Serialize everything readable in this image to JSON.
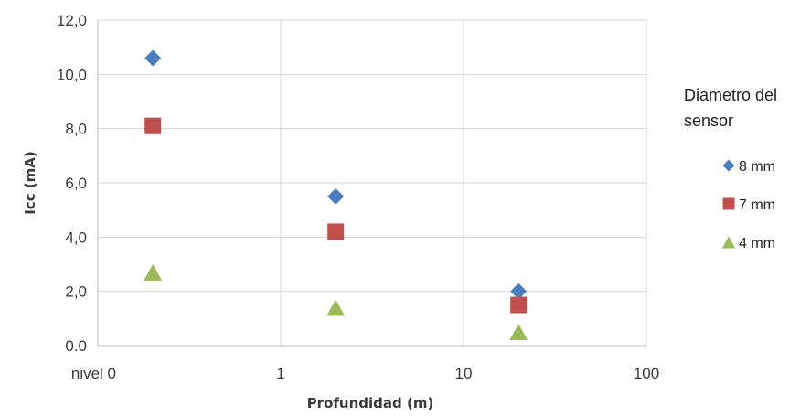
{
  "chart_data": {
    "type": "scatter",
    "xlabel": "Profundidad (m)",
    "ylabel": "Icc (mA)",
    "x_scale": "log",
    "xlim": [
      0.1,
      100
    ],
    "ylim": [
      0,
      12
    ],
    "x_ticks": [
      {
        "value": 0.1,
        "label": "nivel 0"
      },
      {
        "value": 1,
        "label": "1"
      },
      {
        "value": 10,
        "label": "10"
      },
      {
        "value": 100,
        "label": "100"
      }
    ],
    "y_ticks": [
      {
        "value": 0,
        "label": "0.0"
      },
      {
        "value": 2,
        "label": "2,0"
      },
      {
        "value": 4,
        "label": "4,0"
      },
      {
        "value": 6,
        "label": "6,0"
      },
      {
        "value": 8,
        "label": "8,0"
      },
      {
        "value": 10,
        "label": "10,0"
      },
      {
        "value": 12,
        "label": "12,0"
      }
    ],
    "grid": true,
    "legend_title": "Diametro del sensor",
    "legend_title_lines": [
      "Diametro del",
      "sensor"
    ],
    "legend_position": "right",
    "series": [
      {
        "name": "8 mm",
        "marker": "diamond",
        "color": "#4a7ebf",
        "x": [
          0.2,
          2,
          20
        ],
        "y": [
          10.6,
          5.5,
          2.0
        ]
      },
      {
        "name": "7 mm",
        "marker": "square",
        "color": "#c0504d",
        "x": [
          0.2,
          2,
          20
        ],
        "y": [
          8.1,
          4.2,
          1.5
        ]
      },
      {
        "name": "4 mm",
        "marker": "triangle",
        "color": "#9bbb59",
        "x": [
          0.2,
          2,
          20
        ],
        "y": [
          2.7,
          1.4,
          0.5
        ]
      }
    ]
  }
}
